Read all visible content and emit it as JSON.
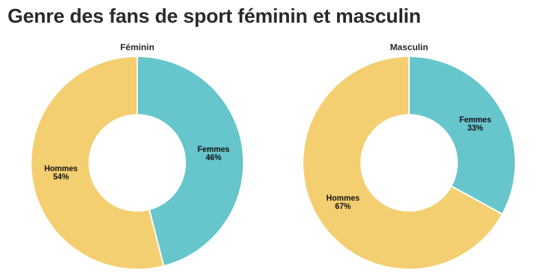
{
  "title": "Genre des fans de sport féminin et masculin",
  "colors": {
    "Femmes": "#67c5cc",
    "Hommes": "#f4cf71",
    "separator": "#ffffff"
  },
  "chart_data": [
    {
      "type": "pie",
      "variant": "donut",
      "title": "Féminin",
      "slices": [
        {
          "label": "Femmes",
          "value": 46,
          "display": "46%"
        },
        {
          "label": "Hommes",
          "value": 54,
          "display": "54%"
        }
      ]
    },
    {
      "type": "pie",
      "variant": "donut",
      "title": "Masculin",
      "slices": [
        {
          "label": "Femmes",
          "value": 33,
          "display": "33%"
        },
        {
          "label": "Hommes",
          "value": 67,
          "display": "67%"
        }
      ]
    }
  ]
}
